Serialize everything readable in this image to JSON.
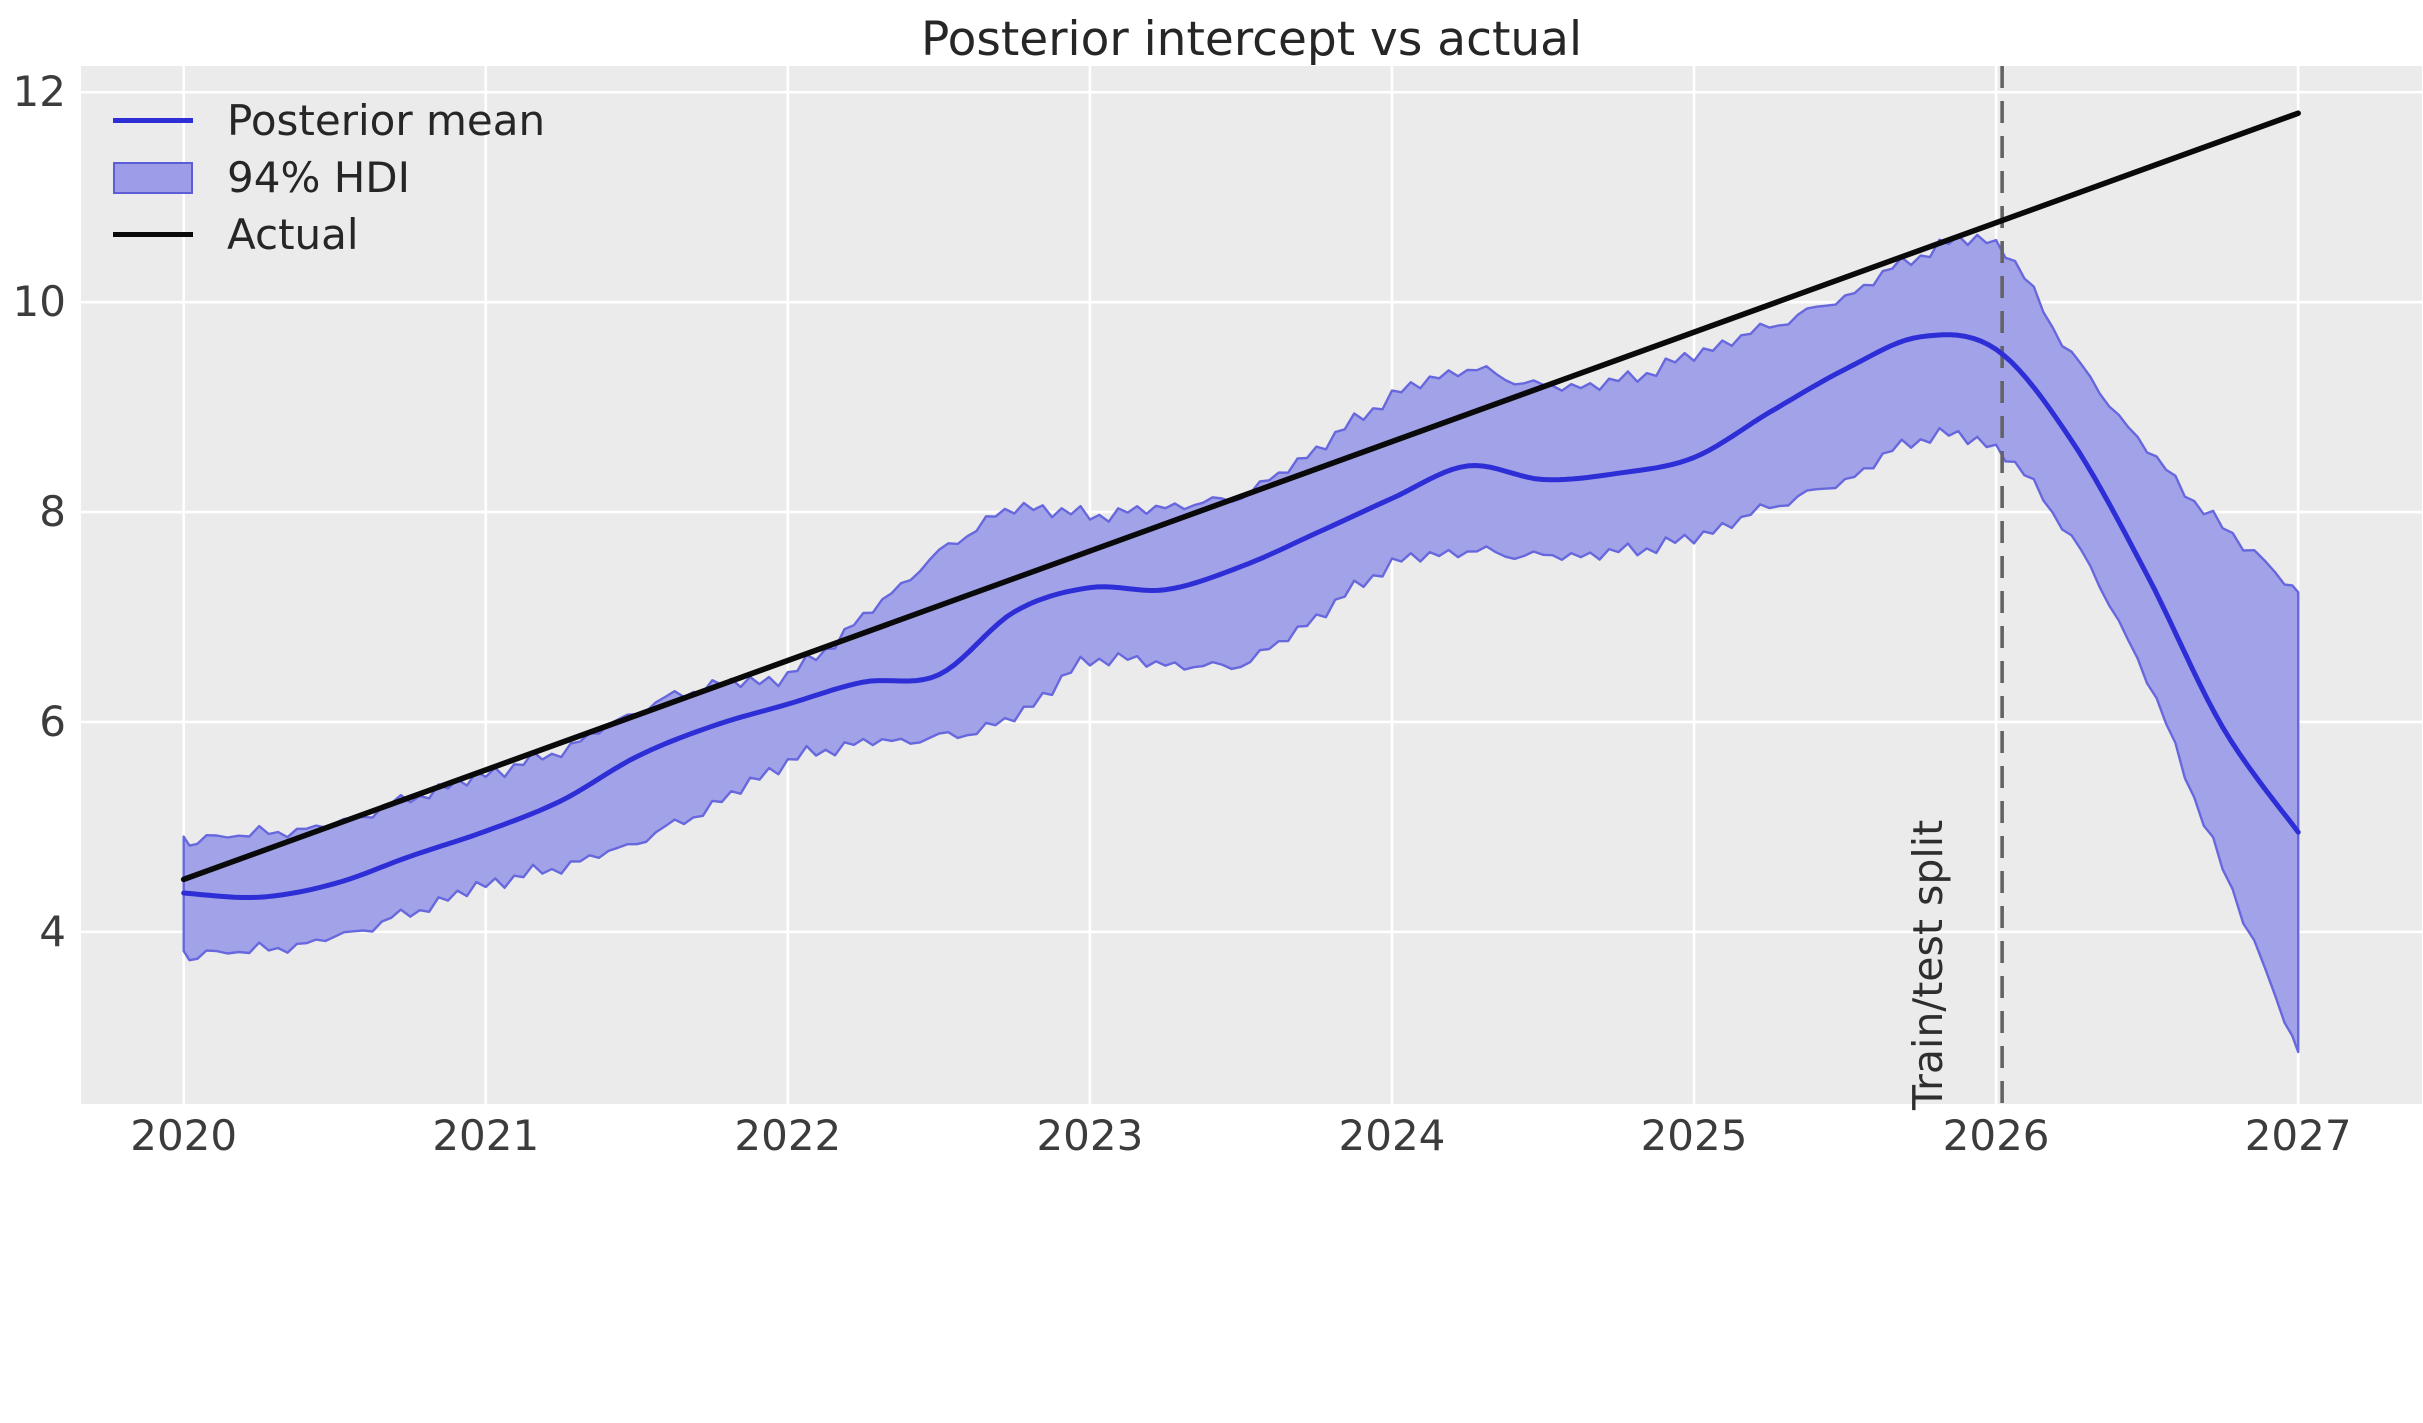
{
  "title": "Posterior intercept vs actual",
  "legend": {
    "items": [
      {
        "label": "Posterior mean",
        "type": "line",
        "color": "#2e2ed6"
      },
      {
        "label": "94% HDI",
        "type": "patch",
        "fill": "#9c9ce9",
        "edge": "#5d5dd8"
      },
      {
        "label": "Actual",
        "type": "line",
        "color": "#0a0a0a"
      }
    ]
  },
  "annotation": {
    "label": "Train/test split",
    "x": 2026.02,
    "line_style": "dashed",
    "line_color": "#636363"
  },
  "chart_data": {
    "type": "line",
    "title": "Posterior intercept vs actual",
    "xlabel": "",
    "ylabel": "",
    "xlim": [
      2019.66,
      2027.41
    ],
    "ylim": [
      2.36,
      12.25
    ],
    "xticks": [
      2020,
      2021,
      2022,
      2023,
      2024,
      2025,
      2026,
      2027
    ],
    "yticks": [
      4,
      6,
      8,
      10,
      12
    ],
    "grid": true,
    "grid_color": "#ffffff",
    "plot_bg": "#ebebeb",
    "legend_position": "upper-left",
    "x": [
      2020.0,
      2020.25,
      2020.5,
      2020.75,
      2021.0,
      2021.25,
      2021.5,
      2021.75,
      2022.0,
      2022.25,
      2022.5,
      2022.75,
      2023.0,
      2023.25,
      2023.5,
      2023.75,
      2024.0,
      2024.25,
      2024.5,
      2024.75,
      2025.0,
      2025.25,
      2025.5,
      2025.75,
      2026.0,
      2026.25,
      2026.5,
      2026.75,
      2027.0
    ],
    "series": [
      {
        "name": "Posterior mean",
        "style": "line",
        "color": "#2e2ed6",
        "values": [
          4.37,
          4.33,
          4.46,
          4.72,
          4.96,
          5.25,
          5.67,
          5.96,
          6.17,
          6.38,
          6.45,
          7.05,
          7.28,
          7.26,
          7.48,
          7.8,
          8.13,
          8.44,
          8.31,
          8.37,
          8.52,
          8.95,
          9.36,
          9.67,
          9.55,
          8.68,
          7.4,
          5.95,
          4.95
        ]
      },
      {
        "name": "94% HDI lower",
        "style": "band-edge",
        "color": "#6868de",
        "values": [
          3.78,
          3.82,
          3.95,
          4.18,
          4.45,
          4.62,
          4.86,
          5.2,
          5.62,
          5.8,
          5.85,
          6.05,
          6.58,
          6.55,
          6.56,
          7.0,
          7.5,
          7.62,
          7.58,
          7.62,
          7.76,
          8.05,
          8.3,
          8.7,
          8.6,
          7.75,
          6.4,
          4.6,
          2.87
        ]
      },
      {
        "name": "94% HDI upper",
        "style": "band-edge",
        "color": "#6868de",
        "values": [
          4.87,
          4.93,
          5.03,
          5.27,
          5.5,
          5.73,
          6.1,
          6.35,
          6.45,
          7.0,
          7.6,
          8.03,
          7.97,
          8.05,
          8.16,
          8.6,
          9.1,
          9.35,
          9.2,
          9.25,
          9.5,
          9.77,
          10.05,
          10.45,
          10.55,
          9.5,
          8.6,
          7.85,
          7.25
        ]
      },
      {
        "name": "Actual",
        "style": "line",
        "color": "#0a0a0a",
        "x": [
          2020,
          2027
        ],
        "values": [
          4.5,
          11.8
        ]
      }
    ],
    "band_fill": "#a2a2e8",
    "train_test_split_x": 2026.02
  }
}
